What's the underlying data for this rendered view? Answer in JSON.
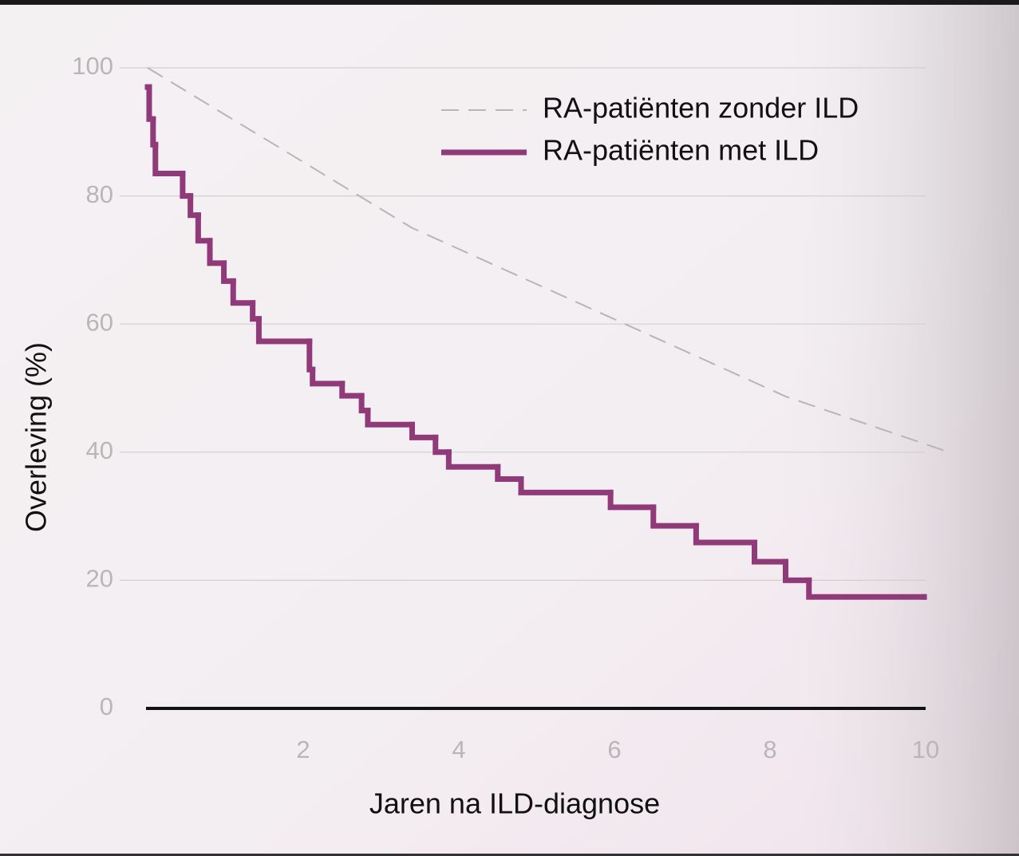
{
  "chart_data": {
    "type": "step-line",
    "ylabel": "Overleving (%)",
    "xlabel": "Jaren na ILD-diagnose",
    "xlim": [
      0,
      10.3
    ],
    "ylim": [
      0,
      100
    ],
    "xticks": [
      2,
      4,
      6,
      8,
      10
    ],
    "yticks": [
      0,
      20,
      40,
      60,
      80,
      100
    ],
    "grid": true,
    "legend": "upper right",
    "series": [
      {
        "name": "RA-patiënten zonder ILD",
        "color": "#b8b5b7",
        "style": "dashed",
        "x": [
          0,
          3.4,
          8.2,
          10.3
        ],
        "values": [
          100,
          75,
          48.7,
          40
        ]
      },
      {
        "name": "RA-patiënten met ILD",
        "color": "#913a79",
        "style": "step",
        "x": [
          0,
          0.02,
          0.07,
          0.1,
          0.45,
          0.55,
          0.65,
          0.8,
          0.98,
          1.1,
          1.35,
          1.43,
          2.08,
          2.12,
          2.5,
          2.75,
          2.83,
          3.4,
          3.7,
          3.87,
          4.5,
          4.8,
          5.95,
          6.5,
          7.05,
          7.8,
          8.2,
          8.5,
          9.98
        ],
        "values": [
          97,
          92,
          88,
          83.5,
          80,
          77,
          73,
          69.5,
          66.7,
          63.3,
          60.8,
          57.3,
          52.9,
          50.7,
          48.8,
          46.5,
          44.3,
          42.3,
          40,
          37.7,
          35.8,
          33.7,
          31.4,
          28.5,
          25.9,
          22.9,
          20,
          17.4,
          17.4
        ]
      }
    ]
  }
}
